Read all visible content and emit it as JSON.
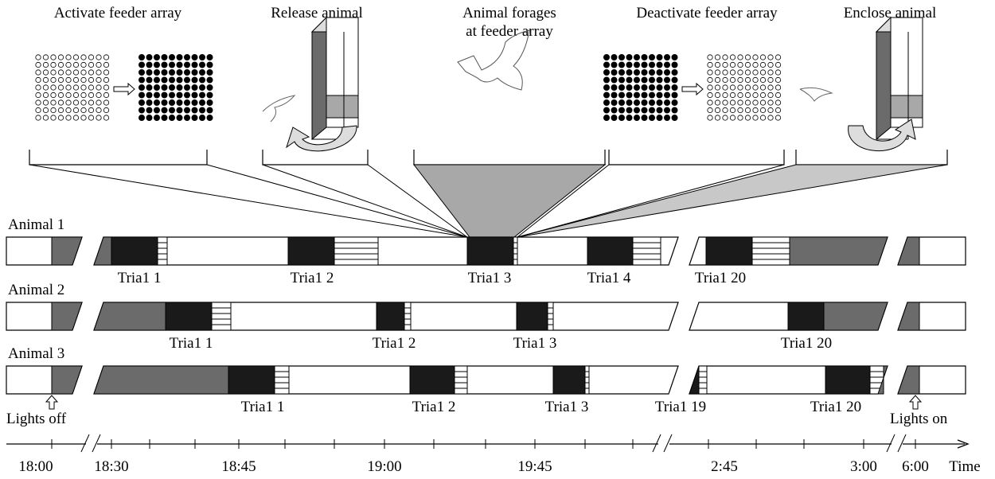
{
  "stages": [
    {
      "lines": [
        "Activate feeder array"
      ]
    },
    {
      "lines": [
        "Release animal"
      ]
    },
    {
      "lines": [
        "Animal forages",
        "at feeder array"
      ]
    },
    {
      "lines": [
        "Deactivate feeder array"
      ]
    },
    {
      "lines": [
        "Enclose animal"
      ]
    }
  ],
  "animals": [
    {
      "label": "Animal 1",
      "trials": [
        "Tria1 1",
        "Tria1 2",
        "Tria1 3",
        "Tria1 4",
        "Tria1 20"
      ]
    },
    {
      "label": "Animal 2",
      "trials": [
        "Tria1 1",
        "Tria1 2",
        "Tria1 3",
        "Tria1 20"
      ]
    },
    {
      "label": "Animal 3",
      "trials": [
        "Tria1 1",
        "Tria1 2",
        "Tria1 3",
        "Tria1 19",
        "Tria1 20"
      ]
    }
  ],
  "annotations": {
    "lights_off": "Lights off",
    "lights_on": "Lights on"
  },
  "timeline": {
    "ticks": [
      "18:00",
      "18:30",
      "18:45",
      "19:00",
      "19:45",
      "2:45",
      "3:00",
      "6:00"
    ],
    "axis_label": "Time"
  }
}
